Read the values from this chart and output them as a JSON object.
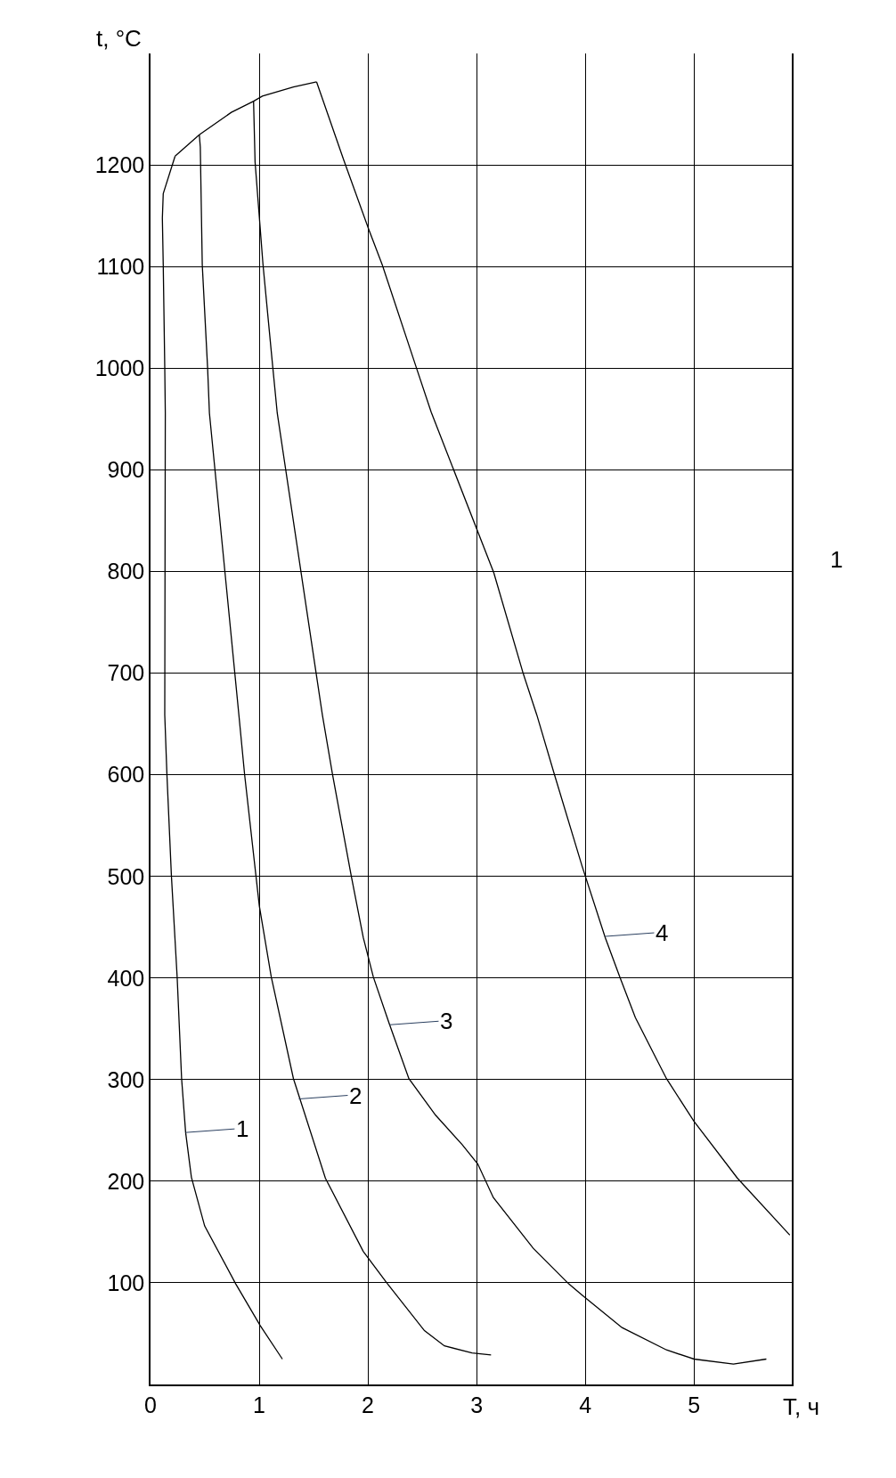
{
  "chart_data": {
    "type": "line",
    "xlabel": "T, ч",
    "ylabel": "t, °C",
    "xlim": [
      0,
      5.9
    ],
    "ylim": [
      0,
      1310
    ],
    "xticks": [
      0,
      1,
      2,
      3,
      4,
      5
    ],
    "yticks": [
      100,
      200,
      300,
      400,
      500,
      600,
      700,
      800,
      900,
      1000,
      1100,
      1200
    ],
    "grid": true,
    "marker": "none",
    "line_style": "solid",
    "series": [
      {
        "color": "#000000",
        "x": [
          0.226,
          0.449,
          0.743,
          0.948,
          1.029,
          1.315,
          1.528
        ],
        "values": [
          1209,
          1230,
          1252,
          1263,
          1268,
          1277,
          1282
        ]
      },
      {
        "color": "#000000",
        "x": [
          0.226,
          0.117,
          0.109,
          0.117,
          0.131,
          0.136,
          0.131,
          0.151,
          0.192,
          0.245,
          0.286,
          0.323,
          0.376,
          0.498,
          0.784,
          1.009,
          1.213
        ],
        "values": [
          1209,
          1172,
          1148,
          1102,
          1001,
          956,
          659,
          600,
          501,
          401,
          301,
          248,
          204,
          156,
          99,
          58,
          25
        ]
      },
      {
        "color": "#000000",
        "x": [
          0.449,
          0.458,
          0.476,
          0.525,
          0.542,
          0.813,
          0.866,
          1.001,
          1.111,
          1.315,
          1.609,
          1.957,
          2.173,
          2.52,
          2.704,
          2.958,
          3.133
        ],
        "values": [
          1230,
          1218,
          1102,
          1001,
          956,
          659,
          600,
          471,
          401,
          301,
          203,
          131,
          100,
          53,
          38,
          31,
          29
        ]
      },
      {
        "color": "#000000",
        "x": [
          0.948,
          0.962,
          1.035,
          1.125,
          1.166,
          1.581,
          1.675,
          1.846,
          1.957,
          2.05,
          2.2,
          2.377,
          2.623,
          2.868,
          3.011,
          3.154,
          3.521,
          3.848,
          3.971,
          4.338,
          4.747,
          5.0,
          5.363,
          5.666
        ],
        "values": [
          1263,
          1203,
          1102,
          1001,
          956,
          659,
          600,
          501,
          440,
          401,
          354,
          301,
          265,
          236,
          217,
          184,
          134,
          99,
          88,
          56,
          34,
          25,
          20,
          25
        ]
      },
      {
        "color": "#000000",
        "x": [
          1.528,
          1.778,
          2.004,
          2.132,
          2.445,
          2.582,
          3.158,
          3.431,
          3.554,
          3.717,
          3.971,
          4.183,
          4.318,
          4.461,
          4.747,
          5.0,
          5.4,
          5.882
        ],
        "values": [
          1282,
          1205,
          1138,
          1102,
          1001,
          957,
          799,
          699,
          659,
          600,
          510,
          440,
          401,
          361,
          301,
          259,
          203,
          147
        ]
      }
    ],
    "annotations": [
      {
        "text": "1",
        "x": 0.323,
        "y": 248
      },
      {
        "text": "2",
        "x": 1.364,
        "y": 281
      },
      {
        "text": "3",
        "x": 2.2,
        "y": 354
      },
      {
        "text": "4",
        "x": 4.183,
        "y": 441
      },
      "1"
    ]
  }
}
